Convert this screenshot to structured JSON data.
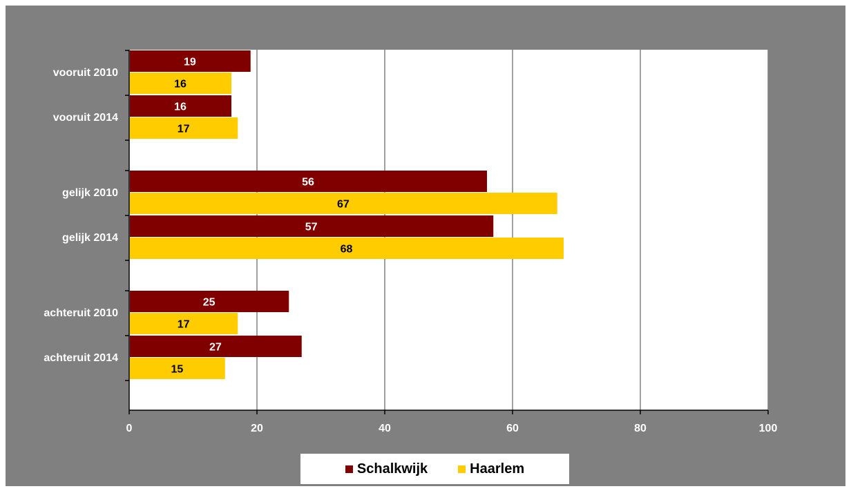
{
  "colors": {
    "background": "#808080",
    "plot_area": "#ffffff",
    "gridline": "#808080",
    "axis": "#000000",
    "schalkwijk": "#800000",
    "haarlem": "#ffcc00",
    "label_on_dark": "#ffffff",
    "label_on_light": "#000000"
  },
  "chart_data": {
    "type": "bar",
    "orientation": "horizontal",
    "categories": [
      "vooruit 2010",
      "vooruit 2014",
      "gelijk 2010",
      "gelijk 2014",
      "achteruit 2010",
      "achteruit 2014"
    ],
    "series": [
      {
        "name": "Schalkwijk",
        "values": [
          19,
          16,
          56,
          57,
          25,
          27
        ]
      },
      {
        "name": "Haarlem",
        "values": [
          16,
          17,
          67,
          68,
          17,
          15
        ]
      }
    ],
    "xlim": [
      0,
      100
    ],
    "x_ticks": [
      0,
      20,
      40,
      60,
      80,
      100
    ],
    "grid": "vertical",
    "legend_position": "bottom",
    "title": "",
    "xlabel": "",
    "ylabel": ""
  }
}
